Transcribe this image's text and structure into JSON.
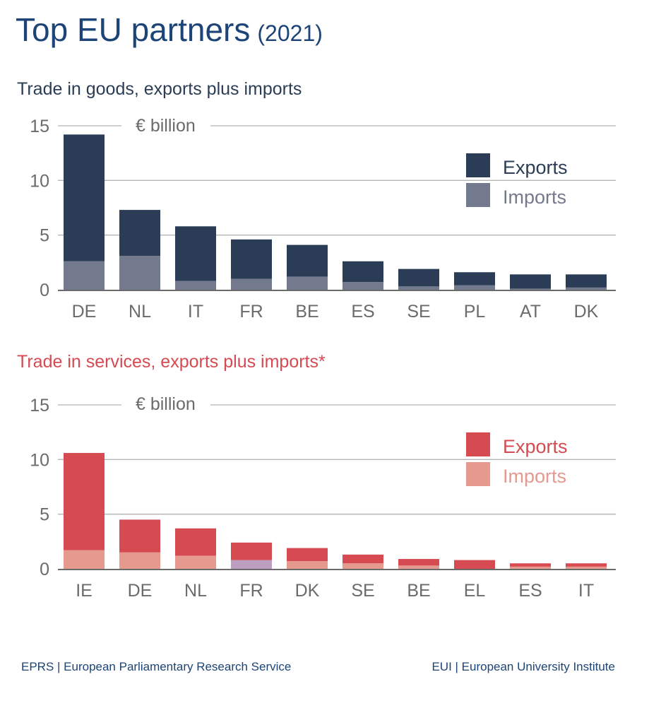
{
  "title": "Top EU partners",
  "title_year": "(2021)",
  "footer": {
    "left": "EPRS | European Parliamentary Research Service",
    "right": "EUI | European University Institute"
  },
  "chart_data": [
    {
      "type": "bar",
      "stacked": true,
      "title": "Trade in goods, exports plus imports",
      "title_color": "#2b3d56",
      "unit_label": "€ billion",
      "ylim": [
        0,
        15
      ],
      "yticks": [
        "0",
        "5",
        "10",
        "15"
      ],
      "grid": true,
      "legend_position": "top-right",
      "categories": [
        "DE",
        "NL",
        "IT",
        "FR",
        "BE",
        "ES",
        "SE",
        "PL",
        "AT",
        "DK"
      ],
      "series": [
        {
          "name": "Imports",
          "color": "#747a8e",
          "values": [
            2.6,
            3.1,
            0.8,
            1.0,
            1.2,
            0.7,
            0.3,
            0.4,
            0.1,
            0.2
          ]
        },
        {
          "name": "Exports",
          "color": "#2b3d56",
          "values": [
            11.6,
            4.2,
            5.0,
            3.6,
            2.9,
            1.9,
            1.6,
            1.2,
            1.3,
            1.2
          ]
        }
      ]
    },
    {
      "type": "bar",
      "stacked": true,
      "title": "Trade in services, exports plus imports*",
      "title_color": "#d64a52",
      "unit_label": "€ billion",
      "ylim": [
        0,
        15
      ],
      "yticks": [
        "0",
        "5",
        "10",
        "15"
      ],
      "grid": true,
      "legend_position": "top-right",
      "categories": [
        "IE",
        "DE",
        "NL",
        "FR",
        "DK",
        "SE",
        "BE",
        "EL",
        "ES",
        "IT"
      ],
      "series": [
        {
          "name": "Imports",
          "color": "#e6998f",
          "values": [
            1.7,
            1.5,
            1.2,
            0.8,
            0.7,
            0.5,
            0.3,
            0.0,
            0.2,
            0.2
          ],
          "highlight": {
            "FR": "#bb9ec0"
          }
        },
        {
          "name": "Exports",
          "color": "#d64a52",
          "values": [
            8.9,
            3.0,
            2.5,
            1.6,
            1.2,
            0.8,
            0.6,
            0.8,
            0.3,
            0.3
          ]
        }
      ]
    }
  ]
}
